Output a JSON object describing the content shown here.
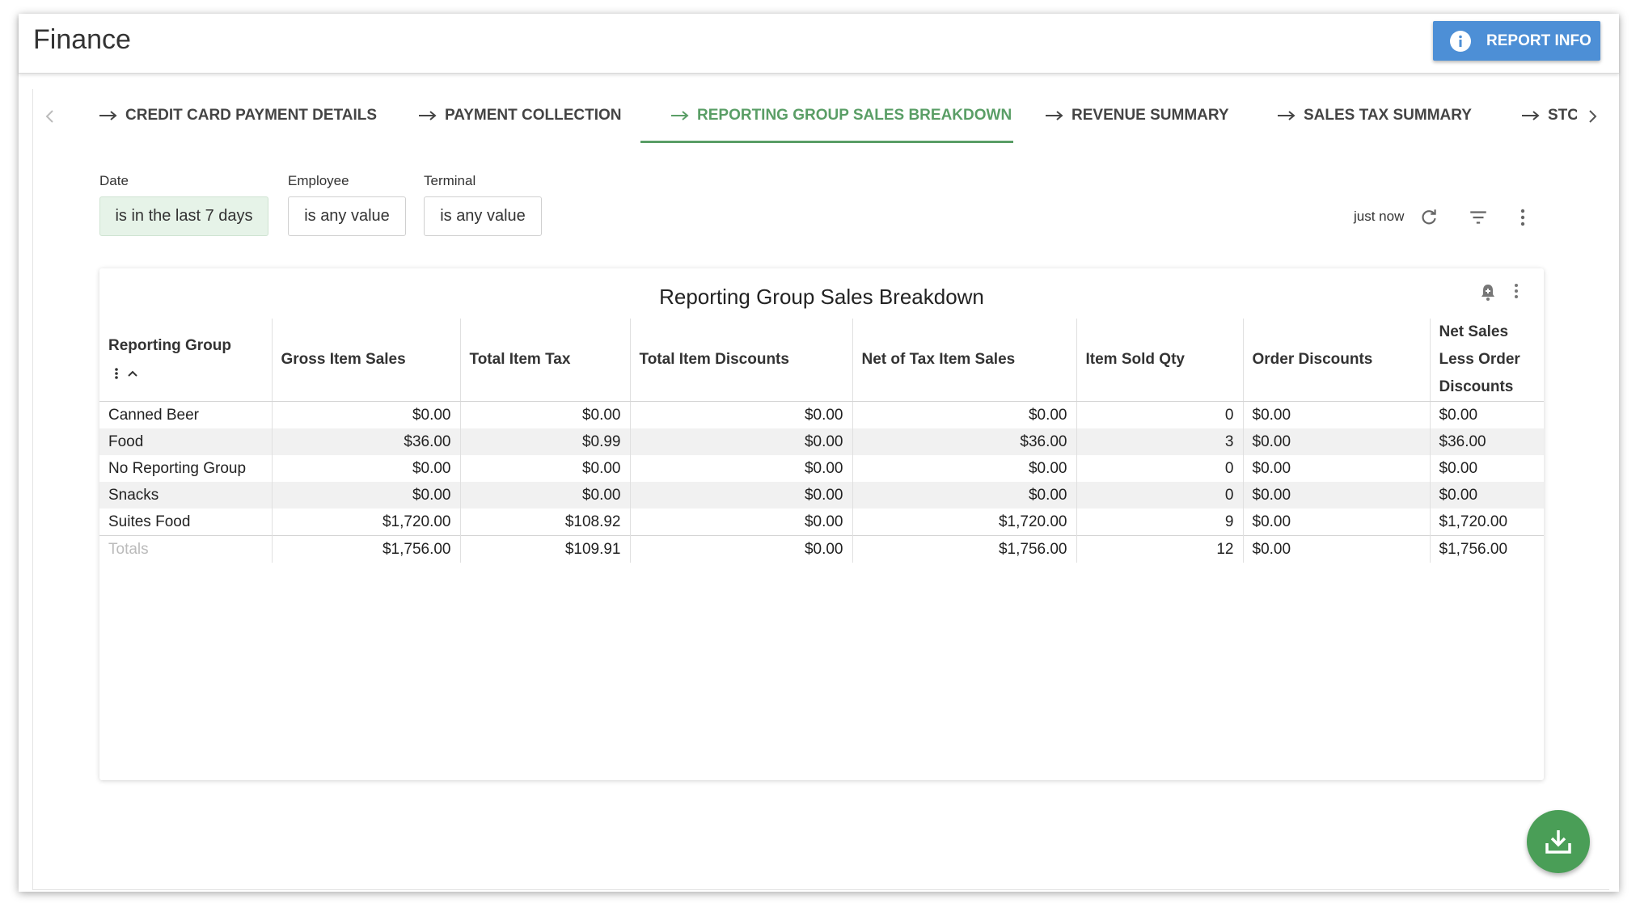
{
  "header": {
    "title": "Finance",
    "button": "REPORT INFO"
  },
  "tabs": [
    "CREDIT CARD PAYMENT DETAILS",
    "PAYMENT COLLECTION",
    "REPORTING GROUP SALES BREAKDOWN",
    "REVENUE SUMMARY",
    "SALES TAX SUMMARY",
    "STC"
  ],
  "active_tab": 2,
  "filters": [
    {
      "label": "Date",
      "value": "is in the last 7 days"
    },
    {
      "label": "Employee",
      "value": "is any value"
    },
    {
      "label": "Terminal",
      "value": "is any value"
    }
  ],
  "status": "just now",
  "table": {
    "title": "Reporting Group Sales Breakdown",
    "columns": [
      "Reporting Group",
      "Gross Item Sales",
      "Total Item Tax",
      "Total Item Discounts",
      "Net of Tax Item Sales",
      "Item Sold Qty",
      "Order Discounts",
      "Net Sales Less Order Discounts"
    ],
    "rows": [
      [
        "Canned Beer",
        "$0.00",
        "$0.00",
        "$0.00",
        "$0.00",
        "0",
        "$0.00",
        "$0.00"
      ],
      [
        "Food",
        "$36.00",
        "$0.99",
        "$0.00",
        "$36.00",
        "3",
        "$0.00",
        "$36.00"
      ],
      [
        "No Reporting Group",
        "$0.00",
        "$0.00",
        "$0.00",
        "$0.00",
        "0",
        "$0.00",
        "$0.00"
      ],
      [
        "Snacks",
        "$0.00",
        "$0.00",
        "$0.00",
        "$0.00",
        "0",
        "$0.00",
        "$0.00"
      ],
      [
        "Suites Food",
        "$1,720.00",
        "$108.92",
        "$0.00",
        "$1,720.00",
        "9",
        "$0.00",
        "$1,720.00"
      ]
    ],
    "totals": [
      "Totals",
      "$1,756.00",
      "$109.91",
      "$0.00",
      "$1,756.00",
      "12",
      "$0.00",
      "$1,756.00"
    ]
  }
}
